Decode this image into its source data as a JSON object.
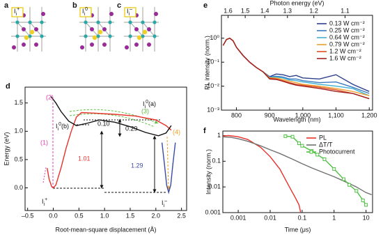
{
  "images": [
    {
      "panel_label": "a",
      "label": {
        "base": "I",
        "sub": "i",
        "sup": "+"
      }
    },
    {
      "panel_label": "b",
      "label": {
        "base": "I",
        "sub": "i",
        "sup": "0"
      }
    },
    {
      "panel_label": "c",
      "label": {
        "base": "I",
        "sub": "i",
        "sup": "–"
      }
    }
  ],
  "chart_data": [
    {
      "type": "line",
      "panel_label": "d",
      "xlabel": "Root-mean-square displacement (Å)",
      "ylabel": "Energy (eV)",
      "xlim": [
        -0.55,
        2.6
      ],
      "ylim": [
        -0.4,
        1.78
      ],
      "xticks": [
        {
          "value": -0.5,
          "label": "–0.5"
        },
        {
          "value": 0,
          "label": "0.0"
        },
        0.5,
        {
          "value": 1,
          "label": "1.0"
        },
        1.5,
        {
          "value": 2,
          "label": "2.0"
        },
        2.5
      ],
      "yticks": [
        {
          "value": 0,
          "label": "0.0"
        },
        0.5,
        {
          "value": 1,
          "label": "1.0"
        },
        1.5
      ],
      "series": [
        {
          "color": "#e8302a",
          "x": [
            -0.12,
            -0.08,
            -0.03,
            0.0,
            0.05,
            0.15,
            0.25,
            0.35,
            0.45,
            0.55,
            0.8,
            1.2,
            1.6,
            2.0,
            2.2,
            2.3
          ],
          "values": [
            0.35,
            0.15,
            0.02,
            0.0,
            0.05,
            0.35,
            0.7,
            1.0,
            1.25,
            1.33,
            1.32,
            1.3,
            1.27,
            1.2,
            1.1,
            1.02
          ]
        },
        {
          "color": "#111111",
          "x": [
            -0.05,
            0.05,
            0.15,
            0.3,
            0.45,
            0.65,
            0.9,
            1.2,
            1.5,
            1.8,
            2.05,
            2.2,
            2.3
          ],
          "values": [
            1.62,
            1.5,
            1.35,
            1.18,
            1.1,
            1.14,
            1.2,
            1.16,
            1.08,
            0.98,
            0.92,
            0.97,
            1.1
          ]
        },
        {
          "color": "#3a4aa8",
          "x": [
            2.12,
            2.17,
            2.21,
            2.25,
            2.29,
            2.33,
            2.38
          ],
          "values": [
            0.8,
            0.4,
            0.05,
            -0.08,
            0.05,
            0.4,
            0.8
          ]
        }
      ],
      "annotations": [
        {
          "text": "(1)",
          "color": "#e040b0"
        },
        {
          "text": "(2)",
          "color": "#e040b0"
        },
        {
          "text": "(3)",
          "color": "#5cc040"
        },
        {
          "text": "(4)",
          "color": "#f0a020"
        },
        {
          "text": "1.01",
          "color": "#e8302a"
        },
        {
          "text": "1.29",
          "color": "#3a4aa8"
        },
        {
          "text": "0.10",
          "color": "#111111"
        },
        {
          "text": "0.29",
          "color": "#111111"
        },
        {
          "label": {
            "base": "I",
            "sub": "i",
            "sup": "0",
            "suffix": "(b)"
          },
          "color": "#111111"
        },
        {
          "label": {
            "base": "I",
            "sub": "i",
            "sup": "0",
            "suffix": "(a)"
          },
          "color": "#111111"
        },
        {
          "label": {
            "base": "I",
            "sub": "i",
            "sup": "+"
          },
          "color": "#111111"
        },
        {
          "label": {
            "base": "I",
            "sub": "i",
            "sup": "–"
          },
          "color": "#111111"
        }
      ]
    },
    {
      "type": "line",
      "panel_label": "e",
      "xlabel": "Wavelength (nm)",
      "ylabel": "PL intensity (norm.)",
      "x2label": "Photon energy (eV)",
      "yscale": "log",
      "xlim": [
        755,
        1210
      ],
      "ylim": [
        0.001,
        9
      ],
      "xticks": [
        800,
        900,
        {
          "value": 1000,
          "label": "1,000"
        },
        {
          "value": 1100,
          "label": "1,100"
        },
        {
          "value": 1200,
          "label": "1,200"
        }
      ],
      "yticks": [
        {
          "value": 0.001,
          "label": "10⁻³"
        },
        {
          "value": 0.01,
          "label": "10⁻²"
        },
        {
          "value": 0.1,
          "label": "10⁻¹"
        },
        {
          "value": 1,
          "label": "10⁰"
        }
      ],
      "x2ticks": [
        1.6,
        1.5,
        1.4,
        1.3,
        1.2,
        1.1
      ],
      "legend": "upper right",
      "x": [
        760,
        770,
        780,
        790,
        800,
        820,
        840,
        860,
        880,
        900,
        920,
        940,
        960,
        980,
        1000,
        1050,
        1100,
        1150,
        1200
      ],
      "series": [
        {
          "name": "0.13 W cm⁻²",
          "color": "#2c3e8c",
          "values": [
            0.5,
            0.88,
            1,
            0.78,
            0.42,
            0.19,
            0.1,
            0.06,
            0.04,
            0.025,
            0.032,
            0.03,
            0.025,
            0.028,
            0.022,
            0.02,
            0.03,
            0.012,
            0.006
          ]
        },
        {
          "name": "0.25 W cm⁻²",
          "color": "#3a7ac0",
          "values": [
            0.5,
            0.88,
            1,
            0.78,
            0.42,
            0.19,
            0.1,
            0.06,
            0.04,
            0.024,
            0.026,
            0.024,
            0.02,
            0.02,
            0.017,
            0.014,
            0.015,
            0.009,
            0.005
          ]
        },
        {
          "name": "0.64 W cm⁻²",
          "color": "#3fb0d0",
          "values": [
            0.5,
            0.88,
            1,
            0.78,
            0.42,
            0.19,
            0.1,
            0.06,
            0.04,
            0.023,
            0.024,
            0.022,
            0.018,
            0.017,
            0.015,
            0.012,
            0.01,
            0.008,
            0.004
          ]
        },
        {
          "name": "0.79 W cm⁻²",
          "color": "#f0a030",
          "values": [
            0.5,
            0.88,
            1,
            0.78,
            0.42,
            0.19,
            0.1,
            0.06,
            0.04,
            0.022,
            0.022,
            0.019,
            0.016,
            0.014,
            0.012,
            0.01,
            0.008,
            0.006,
            0.004
          ]
        },
        {
          "name": "1.2 W cm⁻²",
          "color": "#e05020",
          "values": [
            0.5,
            0.88,
            1,
            0.78,
            0.42,
            0.19,
            0.1,
            0.06,
            0.04,
            0.021,
            0.02,
            0.017,
            0.014,
            0.012,
            0.011,
            0.009,
            0.007,
            0.005,
            0.003
          ]
        },
        {
          "name": "1.6 W cm⁻²",
          "color": "#a02020",
          "values": [
            0.5,
            0.88,
            1,
            0.78,
            0.42,
            0.19,
            0.1,
            0.06,
            0.04,
            0.02,
            0.019,
            0.016,
            0.013,
            0.011,
            0.01,
            0.008,
            0.006,
            0.005,
            0.003
          ]
        }
      ]
    },
    {
      "type": "line",
      "panel_label": "f",
      "xlabel": "Time (μs)",
      "ylabel": "Intensity (norm.)",
      "xscale": "log",
      "yscale": "log",
      "xlim": [
        0.00033,
        16
      ],
      "ylim": [
        0.001,
        1.5
      ],
      "xticks": [
        0.001,
        0.01,
        0.1,
        1,
        10
      ],
      "yticks": [
        0.001,
        0.01,
        0.1,
        1
      ],
      "legend": "upper right",
      "series": [
        {
          "name": "PL",
          "color": "#e8302a",
          "x": [
            0.0003,
            0.0005,
            0.001,
            0.002,
            0.005,
            0.01,
            0.02,
            0.04,
            0.06,
            0.08,
            0.09
          ],
          "values": [
            0.95,
            1,
            0.9,
            0.7,
            0.35,
            0.15,
            0.05,
            0.01,
            0.004,
            0.002,
            0.001
          ]
        },
        {
          "name": "ΔT/T",
          "color": "#707070",
          "x": [
            0.0003,
            0.0006,
            0.001,
            0.002,
            0.005,
            0.01,
            0.02,
            0.05,
            0.1,
            0.2,
            0.5,
            1,
            2,
            5,
            10,
            15
          ],
          "values": [
            0.9,
            0.85,
            0.75,
            0.6,
            0.4,
            0.28,
            0.2,
            0.12,
            0.08,
            0.055,
            0.035,
            0.025,
            0.017,
            0.01,
            0.006,
            0.005
          ]
        },
        {
          "name": "Photocurrent",
          "color": "#4cc040",
          "markers": true,
          "x": [
            0.03,
            0.05,
            0.08,
            0.1,
            0.2,
            0.3,
            0.5,
            1,
            2,
            3,
            5,
            8,
            10
          ],
          "values": [
            0.95,
            0.9,
            0.5,
            0.4,
            0.25,
            0.18,
            0.12,
            0.05,
            0.02,
            0.012,
            0.007,
            0.003,
            0.002
          ]
        }
      ]
    }
  ]
}
